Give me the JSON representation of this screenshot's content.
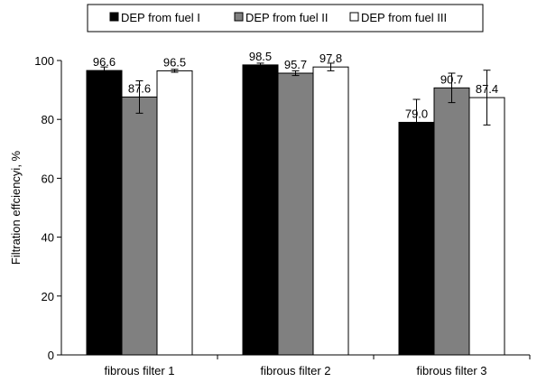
{
  "chart_data": {
    "type": "bar",
    "title": "",
    "xlabel": "",
    "ylabel": "Filtration effciencyi, %",
    "ylim": [
      0,
      100
    ],
    "yticks": [
      0,
      20,
      40,
      60,
      80,
      100
    ],
    "grid": false,
    "legend_position": "top",
    "categories": [
      "fibrous filter 1",
      "fibrous filter 2",
      "fibrous filter 3"
    ],
    "series": [
      {
        "name": "DEP from fuel I",
        "color": "#000000",
        "values": [
          96.6,
          98.5,
          79.0
        ],
        "labels": [
          "96.6",
          "98.5",
          "79.0"
        ],
        "errors": [
          1.2,
          0.6,
          7.8
        ]
      },
      {
        "name": "DEP from fuel II",
        "color": "#808080",
        "values": [
          87.6,
          95.7,
          90.7
        ],
        "labels": [
          "87.6",
          "95.7",
          "90.7"
        ],
        "errors": [
          5.5,
          0.8,
          5.0
        ]
      },
      {
        "name": "DEP from fuel III",
        "color": "#ffffff",
        "values": [
          96.5,
          97.8,
          87.4
        ],
        "labels": [
          "96.5",
          "97.8",
          "87.4"
        ],
        "errors": [
          0.5,
          1.3,
          9.3
        ]
      }
    ]
  }
}
